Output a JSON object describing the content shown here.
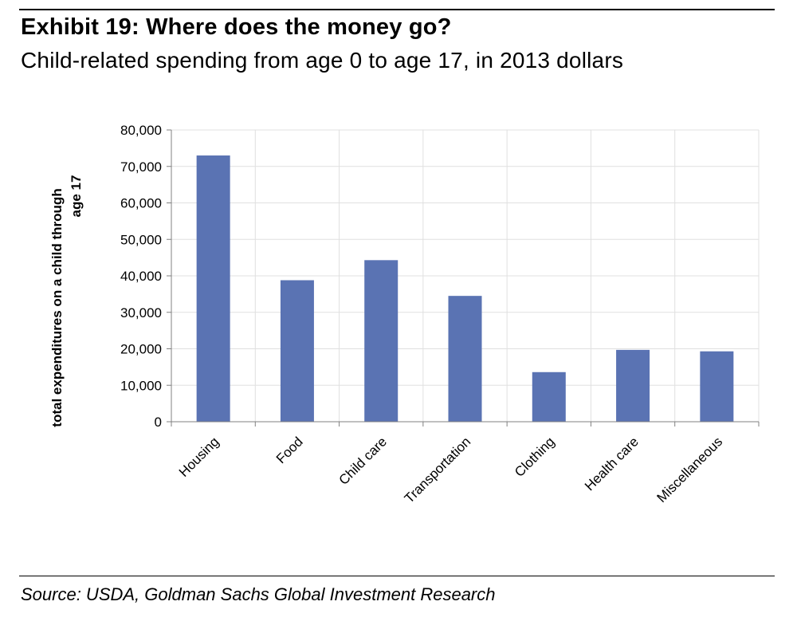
{
  "header": {
    "title": "Exhibit 19: Where does the money go?",
    "subtitle": "Child-related spending from age 0 to age 17, in 2013 dollars"
  },
  "footer": {
    "source": "Source: USDA, Goldman Sachs Global Investment Research"
  },
  "colors": {
    "bar": "#5a73b3",
    "grid": "#e0e0e0",
    "axis": "#808080"
  },
  "chart_data": {
    "type": "bar",
    "categories": [
      "Housing",
      "Food",
      "Child care",
      "Transportation",
      "Clothing",
      "Health care",
      "Miscellaneous"
    ],
    "values": [
      73000,
      38800,
      44300,
      34500,
      13600,
      19700,
      19300
    ],
    "ylabel_line1": "total expenditures on a child through",
    "ylabel_line2": "age 17",
    "ylim": [
      0,
      80000
    ],
    "yticks": [
      "0",
      "10,000",
      "20,000",
      "30,000",
      "40,000",
      "50,000",
      "60,000",
      "70,000",
      "80,000"
    ],
    "grid": true
  }
}
